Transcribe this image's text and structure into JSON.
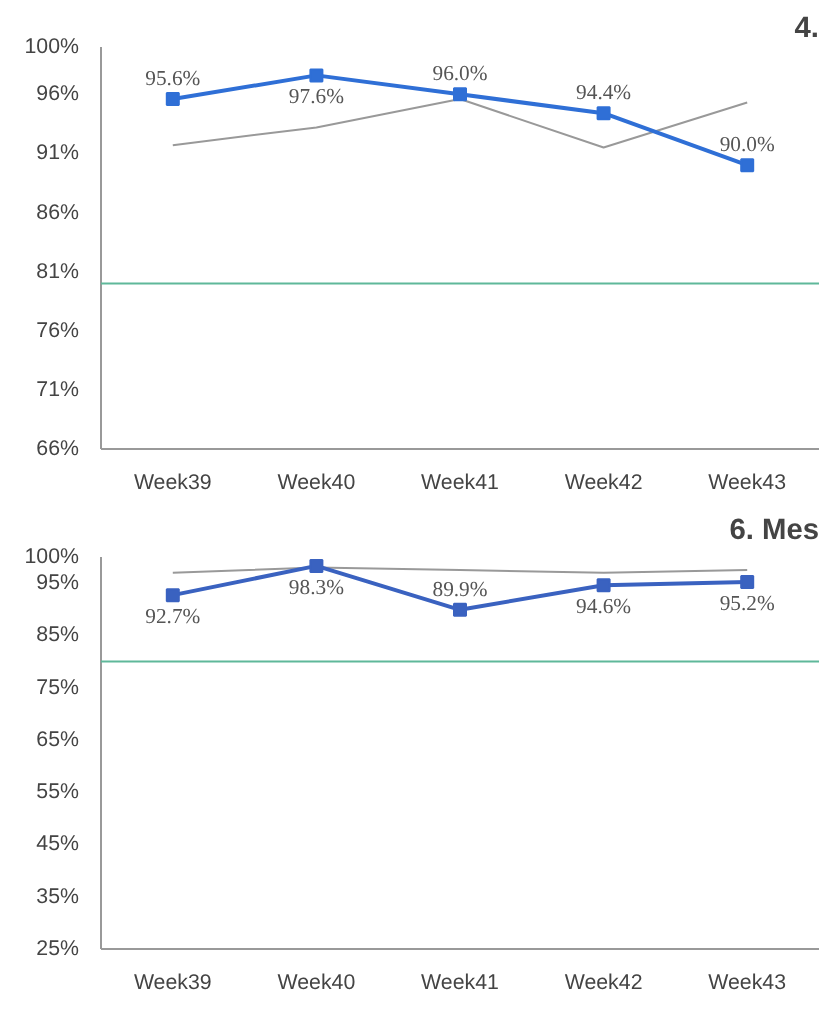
{
  "chart_data": [
    {
      "type": "line",
      "title": "4.",
      "categories": [
        "Week39",
        "Week40",
        "Week41",
        "Week42",
        "Week43"
      ],
      "series": [
        {
          "color": "#999999",
          "values": [
            91.7,
            93.2,
            95.6,
            91.5,
            95.3
          ],
          "marker": "none"
        },
        {
          "color": "#2f6fd6",
          "values": [
            95.6,
            97.6,
            96.0,
            94.4,
            90.0
          ],
          "marker": "square",
          "value_labels": [
            "95.6%",
            "97.6%",
            "96.0%",
            "94.4%",
            "90.0%"
          ]
        }
      ],
      "ylim": [
        66,
        100
      ],
      "yticks": [
        {
          "value": 66,
          "label": "66%"
        },
        {
          "value": 71,
          "label": "71%"
        },
        {
          "value": 76,
          "label": "76%"
        },
        {
          "value": 81,
          "label": "81%"
        },
        {
          "value": 86,
          "label": "86%"
        },
        {
          "value": 91,
          "label": "91%"
        },
        {
          "value": 96,
          "label": "96%"
        },
        {
          "value": 100,
          "label": "100%"
        }
      ],
      "ref_lines": [
        {
          "axis": "y",
          "value": 80,
          "color": "#5fb89a"
        }
      ],
      "grid": false
    },
    {
      "type": "line",
      "title": "6. Mes",
      "categories": [
        "Week39",
        "Week40",
        "Week41",
        "Week42",
        "Week43"
      ],
      "series": [
        {
          "color": "#999999",
          "values": [
            97.0,
            98.0,
            97.5,
            97.0,
            97.5
          ],
          "marker": "none"
        },
        {
          "color": "#3a62c0",
          "values": [
            92.7,
            98.3,
            89.9,
            94.6,
            95.2
          ],
          "marker": "square",
          "value_labels": [
            "92.7%",
            "98.3%",
            "89.9%",
            "94.6%",
            "95.2%"
          ]
        }
      ],
      "ylim": [
        25,
        100
      ],
      "yticks": [
        {
          "value": 25,
          "label": "25%"
        },
        {
          "value": 35,
          "label": "35%"
        },
        {
          "value": 45,
          "label": "45%"
        },
        {
          "value": 55,
          "label": "55%"
        },
        {
          "value": 65,
          "label": "65%"
        },
        {
          "value": 75,
          "label": "75%"
        },
        {
          "value": 85,
          "label": "85%"
        },
        {
          "value": 95,
          "label": "95%"
        },
        {
          "value": 100,
          "label": "100%"
        }
      ],
      "ref_lines": [
        {
          "axis": "y",
          "value": 80,
          "color": "#5fb89a"
        }
      ],
      "grid": false
    }
  ]
}
